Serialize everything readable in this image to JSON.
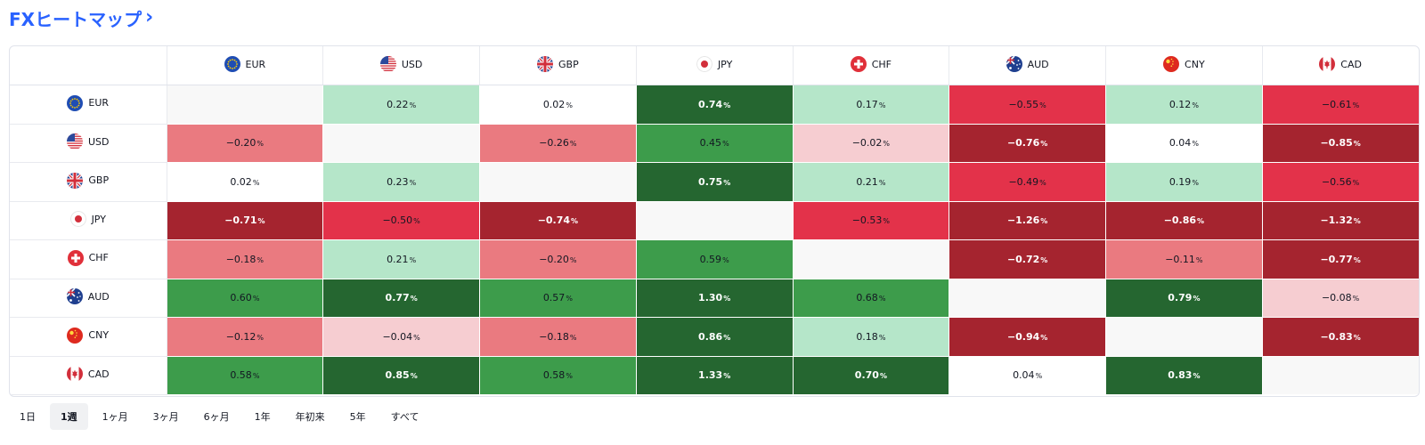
{
  "title": {
    "text": "FXヒートマップ",
    "chevron": "›"
  },
  "currencies": [
    "EUR",
    "USD",
    "GBP",
    "JPY",
    "CHF",
    "AUD",
    "CNY",
    "CAD"
  ],
  "pct_suffix": "%",
  "matrix": [
    [
      "",
      "0.22",
      "0.02",
      "0.74",
      "0.17",
      "−0.55",
      "0.12",
      "−0.61"
    ],
    [
      "−0.20",
      "",
      "−0.26",
      "0.45",
      "−0.02",
      "−0.76",
      "0.04",
      "−0.85"
    ],
    [
      "0.02",
      "0.23",
      "",
      "0.75",
      "0.21",
      "−0.49",
      "0.19",
      "−0.56"
    ],
    [
      "−0.71",
      "−0.50",
      "−0.74",
      "",
      "−0.53",
      "−1.26",
      "−0.86",
      "−1.32"
    ],
    [
      "−0.18",
      "0.21",
      "−0.20",
      "0.59",
      "",
      "−0.72",
      "−0.11",
      "−0.77"
    ],
    [
      "0.60",
      "0.77",
      "0.57",
      "1.30",
      "0.68",
      "",
      "0.79",
      "−0.08"
    ],
    [
      "−0.12",
      "−0.04",
      "−0.18",
      "0.86",
      "0.18",
      "−0.94",
      "",
      "−0.83"
    ],
    [
      "0.58",
      "0.85",
      "0.58",
      "1.33",
      "0.70",
      "0.04",
      "0.83",
      ""
    ]
  ],
  "colors": {
    "dark_green": "#256630",
    "mid_green": "#3d9c4b",
    "light_green": "#b5e6c9",
    "neutral": "#ffffff",
    "light_red": "#f6cdd1",
    "mid_red": "#ea7a80",
    "red": "#e3324a",
    "dark_red": "#a5242f",
    "accent": "#2962ff"
  },
  "periods": [
    {
      "label": "1日",
      "active": false
    },
    {
      "label": "1週",
      "active": true
    },
    {
      "label": "1ヶ月",
      "active": false
    },
    {
      "label": "3ヶ月",
      "active": false
    },
    {
      "label": "6ヶ月",
      "active": false
    },
    {
      "label": "1年",
      "active": false
    },
    {
      "label": "年初来",
      "active": false
    },
    {
      "label": "5年",
      "active": false
    },
    {
      "label": "すべて",
      "active": false
    }
  ]
}
